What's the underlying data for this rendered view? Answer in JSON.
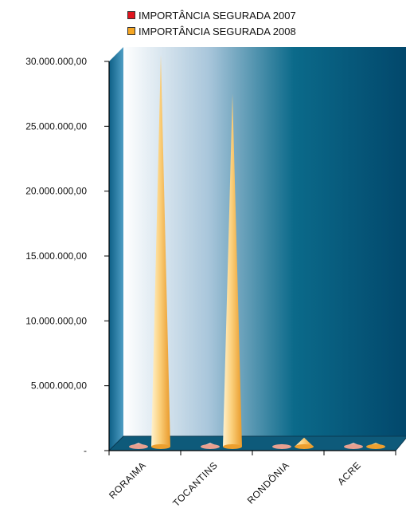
{
  "chart_data": {
    "type": "bar",
    "style": "3d-cone",
    "categories": [
      "RORAIMA",
      "TOCANTINS",
      "RONDÔNIA",
      "ACRE"
    ],
    "series": [
      {
        "name": "IMPORTÂNCIA SEGURADA 2007",
        "color": "#e0141e",
        "values": [
          600000,
          600000,
          500000,
          600000
        ]
      },
      {
        "name": "IMPORTÂNCIA SEGURADA 2008",
        "color": "#f5a623",
        "values": [
          30500000,
          27500000,
          1000000,
          600000
        ]
      }
    ],
    "y_ticks": [
      "-",
      "5.000.000,00",
      "10.000.000,00",
      "15.000.000,00",
      "20.000.000,00",
      "25.000.000,00",
      "30.000.000,00"
    ],
    "ylim": [
      0,
      30000000
    ],
    "legend": "top",
    "grid": false,
    "colors": {
      "wall_light": "#ffffff",
      "wall_dark": "#02476b",
      "floor": "#0e5a7a"
    }
  }
}
